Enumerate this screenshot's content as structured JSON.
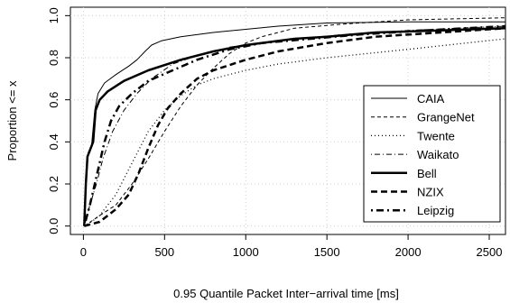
{
  "chart_data": {
    "type": "line",
    "xlabel": "0.95 Quantile Packet Inter−arrival time [ms]",
    "ylabel": "Proportion <= x",
    "xlim": [
      -80,
      2600
    ],
    "ylim": [
      -0.04,
      1.04
    ],
    "x_ticks": [
      0,
      500,
      1000,
      1500,
      2000,
      2500
    ],
    "y_ticks": [
      0.0,
      0.2,
      0.4,
      0.6,
      0.8,
      1.0
    ],
    "x_tick_labels": [
      "0",
      "500",
      "1000",
      "1500",
      "2000",
      "2500"
    ],
    "y_tick_labels": [
      "0.0",
      "0.2",
      "0.4",
      "0.6",
      "0.8",
      "1.0"
    ],
    "grid": true,
    "legend_position": "bottom-right",
    "series": [
      {
        "name": "CAIA",
        "style": "solid-thin",
        "points": [
          [
            5,
            0
          ],
          [
            15,
            0.18
          ],
          [
            30,
            0.35
          ],
          [
            50,
            0.38
          ],
          [
            70,
            0.55
          ],
          [
            90,
            0.63
          ],
          [
            130,
            0.68
          ],
          [
            200,
            0.72
          ],
          [
            280,
            0.76
          ],
          [
            330,
            0.79
          ],
          [
            380,
            0.83
          ],
          [
            420,
            0.86
          ],
          [
            480,
            0.88
          ],
          [
            600,
            0.9
          ],
          [
            800,
            0.92
          ],
          [
            1000,
            0.935
          ],
          [
            1200,
            0.95
          ],
          [
            1500,
            0.965
          ],
          [
            2000,
            0.97
          ],
          [
            2600,
            0.97
          ]
        ]
      },
      {
        "name": "GrangeNet",
        "style": "dashed-thin",
        "points": [
          [
            5,
            0
          ],
          [
            100,
            0.05
          ],
          [
            200,
            0.1
          ],
          [
            300,
            0.2
          ],
          [
            400,
            0.32
          ],
          [
            500,
            0.45
          ],
          [
            600,
            0.57
          ],
          [
            700,
            0.67
          ],
          [
            800,
            0.75
          ],
          [
            900,
            0.82
          ],
          [
            1000,
            0.87
          ],
          [
            1100,
            0.9
          ],
          [
            1300,
            0.94
          ],
          [
            1600,
            0.96
          ],
          [
            2000,
            0.98
          ],
          [
            2600,
            0.99
          ]
        ]
      },
      {
        "name": "Twente",
        "style": "dotted",
        "points": [
          [
            5,
            0
          ],
          [
            50,
            0.02
          ],
          [
            100,
            0.05
          ],
          [
            200,
            0.15
          ],
          [
            300,
            0.3
          ],
          [
            400,
            0.45
          ],
          [
            500,
            0.55
          ],
          [
            600,
            0.62
          ],
          [
            700,
            0.67
          ],
          [
            800,
            0.7
          ],
          [
            1000,
            0.74
          ],
          [
            1200,
            0.77
          ],
          [
            1500,
            0.8
          ],
          [
            2000,
            0.84
          ],
          [
            2600,
            0.89
          ]
        ]
      },
      {
        "name": "Waikato",
        "style": "dotdash-thin",
        "points": [
          [
            5,
            0
          ],
          [
            40,
            0.1
          ],
          [
            80,
            0.2
          ],
          [
            120,
            0.32
          ],
          [
            180,
            0.45
          ],
          [
            250,
            0.55
          ],
          [
            330,
            0.63
          ],
          [
            420,
            0.7
          ],
          [
            550,
            0.77
          ],
          [
            700,
            0.81
          ],
          [
            900,
            0.85
          ],
          [
            1200,
            0.88
          ],
          [
            1600,
            0.91
          ],
          [
            2000,
            0.93
          ],
          [
            2600,
            0.95
          ]
        ]
      },
      {
        "name": "Bell",
        "style": "solid-thick",
        "points": [
          [
            5,
            0
          ],
          [
            15,
            0.2
          ],
          [
            25,
            0.33
          ],
          [
            40,
            0.36
          ],
          [
            60,
            0.4
          ],
          [
            75,
            0.55
          ],
          [
            100,
            0.6
          ],
          [
            150,
            0.64
          ],
          [
            250,
            0.69
          ],
          [
            400,
            0.74
          ],
          [
            600,
            0.79
          ],
          [
            800,
            0.83
          ],
          [
            1000,
            0.86
          ],
          [
            1300,
            0.89
          ],
          [
            1500,
            0.9
          ],
          [
            1800,
            0.92
          ],
          [
            2200,
            0.93
          ],
          [
            2600,
            0.94
          ]
        ]
      },
      {
        "name": "NZIX",
        "style": "dashed-thick",
        "points": [
          [
            5,
            0
          ],
          [
            100,
            0.02
          ],
          [
            200,
            0.08
          ],
          [
            280,
            0.15
          ],
          [
            340,
            0.25
          ],
          [
            400,
            0.37
          ],
          [
            460,
            0.48
          ],
          [
            520,
            0.56
          ],
          [
            600,
            0.63
          ],
          [
            700,
            0.7
          ],
          [
            800,
            0.74
          ],
          [
            1000,
            0.79
          ],
          [
            1200,
            0.83
          ],
          [
            1500,
            0.87
          ],
          [
            1800,
            0.9
          ],
          [
            2200,
            0.92
          ],
          [
            2600,
            0.94
          ]
        ]
      },
      {
        "name": "Leipzig",
        "style": "dotdash-thick",
        "points": [
          [
            5,
            0
          ],
          [
            40,
            0.1
          ],
          [
            70,
            0.2
          ],
          [
            100,
            0.3
          ],
          [
            130,
            0.4
          ],
          [
            170,
            0.5
          ],
          [
            220,
            0.57
          ],
          [
            300,
            0.63
          ],
          [
            400,
            0.69
          ],
          [
            550,
            0.74
          ],
          [
            700,
            0.79
          ],
          [
            900,
            0.84
          ],
          [
            1100,
            0.87
          ],
          [
            1400,
            0.89
          ],
          [
            1700,
            0.91
          ],
          [
            2100,
            0.93
          ],
          [
            2600,
            0.95
          ]
        ]
      }
    ]
  }
}
